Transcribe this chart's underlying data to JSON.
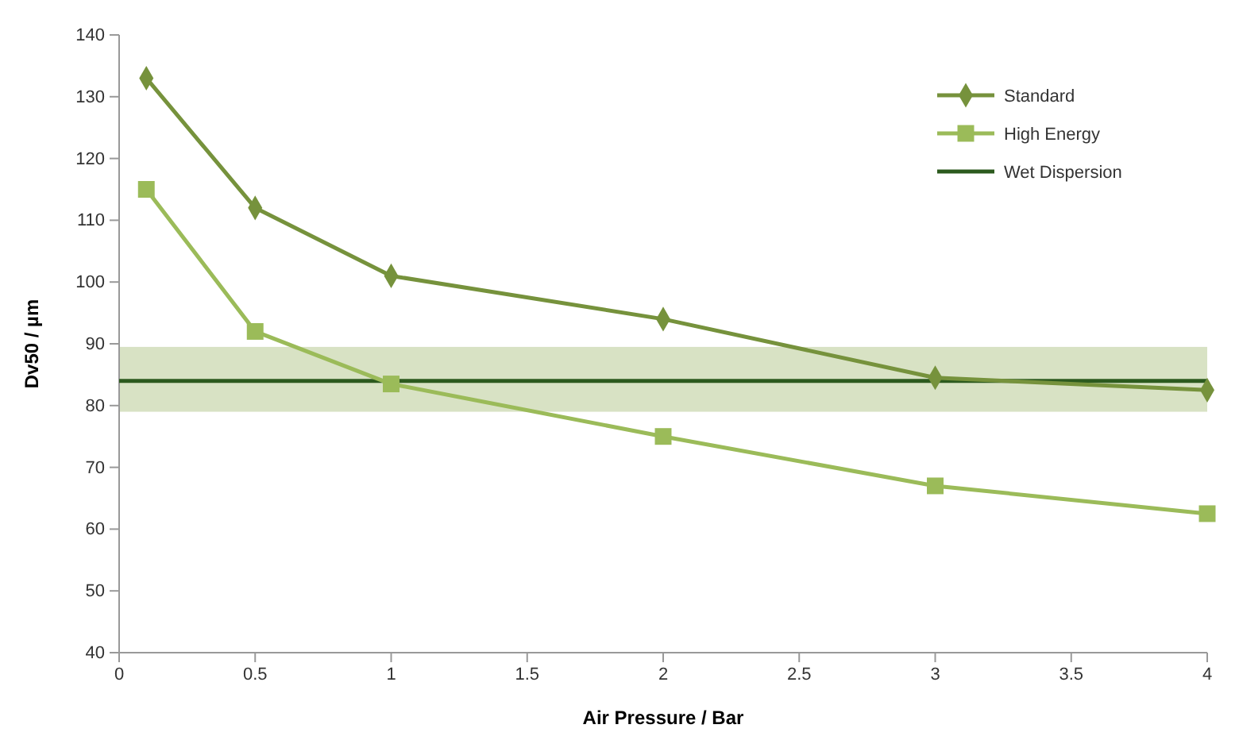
{
  "chart_data": {
    "type": "line",
    "xlabel": "Air Pressure / Bar",
    "ylabel": "Dv50 / µm",
    "xlim": [
      0,
      4
    ],
    "xticks": [
      0,
      0.5,
      1,
      1.5,
      2,
      2.5,
      3,
      3.5,
      4
    ],
    "ylim": [
      40,
      140
    ],
    "yticks": [
      40,
      50,
      60,
      70,
      80,
      90,
      100,
      110,
      120,
      130,
      140
    ],
    "grid": false,
    "legend": "top right",
    "line_style": "solid",
    "series": [
      {
        "name": "Standard",
        "color": "#76923c",
        "marker": "diamond",
        "x": [
          0.1,
          0.5,
          1,
          2,
          3,
          4
        ],
        "values": [
          133,
          112,
          101,
          94,
          84.5,
          82.5
        ]
      },
      {
        "name": "High Energy",
        "color": "#9bbb59",
        "marker": "square",
        "x": [
          0.1,
          0.5,
          1,
          2,
          3,
          4
        ],
        "values": [
          115,
          92,
          83.5,
          75,
          67,
          62.5
        ]
      }
    ],
    "ref_lines": [
      {
        "axis": "y",
        "value": 84,
        "label": "Wet Dispersion",
        "color": "#2c5a1e"
      }
    ],
    "bands": [
      {
        "axis": "y",
        "from": 79,
        "to": 89.5,
        "color": "#d8e2c4"
      }
    ]
  }
}
